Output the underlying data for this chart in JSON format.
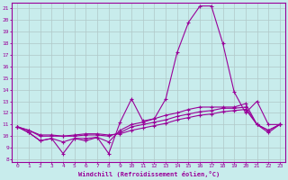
{
  "xlabel": "Windchill (Refroidissement éolien,°C)",
  "ylabel": "",
  "background_color": "#c8ecec",
  "line_color": "#990099",
  "grid_color": "#b0c8c8",
  "xlim": [
    -0.5,
    23.5
  ],
  "ylim": [
    7.8,
    21.5
  ],
  "xticks": [
    0,
    1,
    2,
    3,
    4,
    5,
    6,
    7,
    8,
    9,
    10,
    11,
    12,
    13,
    14,
    15,
    16,
    17,
    18,
    19,
    20,
    21,
    22,
    23
  ],
  "yticks": [
    8,
    9,
    10,
    11,
    12,
    13,
    14,
    15,
    16,
    17,
    18,
    19,
    20,
    21
  ],
  "series": {
    "line1": {
      "x": [
        0,
        1,
        2,
        3,
        4,
        5,
        6,
        7,
        8,
        9,
        10,
        11,
        12,
        13,
        14,
        15,
        16,
        17,
        18,
        19,
        20,
        21,
        22,
        23
      ],
      "y": [
        10.8,
        10.3,
        9.6,
        9.8,
        8.5,
        9.8,
        9.6,
        9.9,
        8.5,
        11.2,
        13.2,
        11.3,
        11.5,
        13.2,
        17.2,
        19.8,
        21.2,
        21.2,
        18.0,
        13.8,
        12.0,
        13.0,
        11.0,
        11.0
      ]
    },
    "line2": {
      "x": [
        0,
        1,
        2,
        3,
        4,
        5,
        6,
        7,
        8,
        9,
        10,
        11,
        12,
        13,
        14,
        15,
        16,
        17,
        18,
        19,
        20,
        21,
        22,
        23
      ],
      "y": [
        10.8,
        10.3,
        9.6,
        9.8,
        9.5,
        9.8,
        9.8,
        9.9,
        9.5,
        10.5,
        11.0,
        11.2,
        11.5,
        11.8,
        12.0,
        12.3,
        12.5,
        12.5,
        12.5,
        12.5,
        12.8,
        11.0,
        10.3,
        11.0
      ]
    },
    "line3": {
      "x": [
        0,
        1,
        2,
        3,
        4,
        5,
        6,
        7,
        8,
        9,
        10,
        11,
        12,
        13,
        14,
        15,
        16,
        17,
        18,
        19,
        20,
        21,
        22,
        23
      ],
      "y": [
        10.8,
        10.5,
        10.0,
        10.0,
        10.0,
        10.0,
        10.1,
        10.1,
        10.0,
        10.3,
        10.8,
        11.0,
        11.2,
        11.4,
        11.7,
        11.9,
        12.1,
        12.2,
        12.4,
        12.4,
        12.5,
        11.0,
        10.5,
        11.0
      ]
    },
    "line4": {
      "x": [
        0,
        1,
        2,
        3,
        4,
        5,
        6,
        7,
        8,
        9,
        10,
        11,
        12,
        13,
        14,
        15,
        16,
        17,
        18,
        19,
        20,
        21,
        22,
        23
      ],
      "y": [
        10.8,
        10.5,
        10.1,
        10.1,
        10.0,
        10.1,
        10.2,
        10.2,
        10.1,
        10.2,
        10.5,
        10.7,
        10.9,
        11.1,
        11.4,
        11.6,
        11.8,
        11.9,
        12.1,
        12.2,
        12.3,
        11.0,
        10.5,
        11.0
      ]
    }
  }
}
